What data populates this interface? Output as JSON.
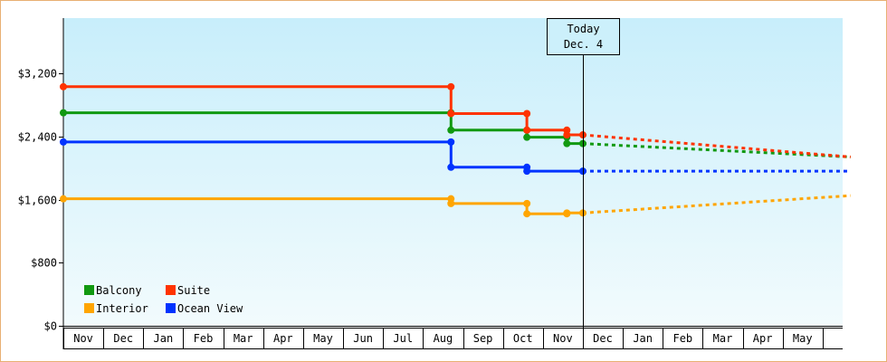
{
  "chart_data": {
    "type": "line",
    "step": true,
    "title": "",
    "xlabel": "",
    "ylabel": "",
    "ylim": [
      0,
      3900
    ],
    "y_ticks": [
      {
        "value": 0,
        "label": "$0"
      },
      {
        "value": 800,
        "label": "$800"
      },
      {
        "value": 1600,
        "label": "$1,600"
      },
      {
        "value": 2400,
        "label": "$2,400"
      },
      {
        "value": 3200,
        "label": "$3,200"
      }
    ],
    "months": [
      "Nov",
      "Dec",
      "Jan",
      "Feb",
      "Mar",
      "Apr",
      "May",
      "Jun",
      "Jul",
      "Aug",
      "Sep",
      "Oct",
      "Nov",
      "Dec",
      "Jan",
      "Feb",
      "Mar",
      "Apr",
      "May"
    ],
    "x_unit": "months from start of first Nov",
    "today": {
      "x": 13.0,
      "line1": "Today",
      "line2": "Dec. 4"
    },
    "legend": {
      "placement": "bottom-left"
    },
    "series": [
      {
        "name": "Balcony",
        "color": "#119911",
        "points": [
          [
            0,
            2700
          ],
          [
            9.7,
            2700
          ],
          [
            9.7,
            2480
          ],
          [
            11.6,
            2480
          ],
          [
            11.6,
            2390
          ],
          [
            12.6,
            2390
          ],
          [
            12.6,
            2310
          ],
          [
            13.0,
            2310
          ]
        ],
        "forecast": [
          [
            13.0,
            2310
          ],
          [
            19.7,
            2140
          ]
        ]
      },
      {
        "name": "Suite",
        "color": "#ff3300",
        "points": [
          [
            0,
            3030
          ],
          [
            9.7,
            3030
          ],
          [
            9.7,
            2690
          ],
          [
            11.6,
            2690
          ],
          [
            11.6,
            2480
          ],
          [
            12.6,
            2480
          ],
          [
            12.6,
            2420
          ],
          [
            13.0,
            2420
          ]
        ],
        "forecast": [
          [
            13.0,
            2420
          ],
          [
            19.7,
            2140
          ]
        ]
      },
      {
        "name": "Interior",
        "color": "#ffa500",
        "points": [
          [
            0,
            1610
          ],
          [
            9.7,
            1610
          ],
          [
            9.7,
            1550
          ],
          [
            11.6,
            1550
          ],
          [
            11.6,
            1420
          ],
          [
            12.6,
            1420
          ],
          [
            12.6,
            1430
          ],
          [
            13.0,
            1430
          ]
        ],
        "forecast": [
          [
            13.0,
            1430
          ],
          [
            19.7,
            1650
          ]
        ]
      },
      {
        "name": "Ocean View",
        "color": "#0033ff",
        "points": [
          [
            0,
            2330
          ],
          [
            9.7,
            2330
          ],
          [
            9.7,
            2010
          ],
          [
            11.6,
            2010
          ],
          [
            11.6,
            1960
          ],
          [
            13.0,
            1960
          ]
        ],
        "forecast": [
          [
            13.0,
            1960
          ],
          [
            19.7,
            1960
          ]
        ]
      }
    ]
  }
}
